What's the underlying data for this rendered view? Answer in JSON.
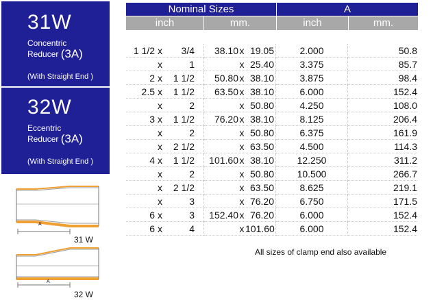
{
  "products": [
    {
      "code": "31W",
      "type_line1": "Concentric",
      "type_line2": "Reducer",
      "standard": "(3A)",
      "end_note": "(With Straight End )"
    },
    {
      "code": "32W",
      "type_line1": "Eccentric",
      "type_line2": "Reducer",
      "standard": "(3A)",
      "end_note": "(With Straight End )"
    }
  ],
  "diagrams": [
    {
      "label": "31 W",
      "dim": "A"
    },
    {
      "label": "32 W",
      "dim": "A"
    }
  ],
  "table": {
    "group_headers": [
      "Nominal  Sizes",
      "A"
    ],
    "sub_headers": [
      "inch",
      "mm.",
      "inch",
      "mm."
    ],
    "rows": [
      {
        "in1": "1 1/2",
        "in2": "3/4",
        "mm1": "38.10",
        "mm2": "19.05",
        "a_in": "2.000",
        "a_mm": "50.8"
      },
      {
        "in1": "",
        "in2": "1",
        "mm1": "",
        "mm2": "25.40",
        "a_in": "3.375",
        "a_mm": "85.7"
      },
      {
        "in1": "2",
        "in2": "1 1/2",
        "mm1": "50.80",
        "mm2": "38.10",
        "a_in": "3.875",
        "a_mm": "98.4"
      },
      {
        "in1": "2.5",
        "in2": "1 1/2",
        "mm1": "63.50",
        "mm2": "38.10",
        "a_in": "6.000",
        "a_mm": "152.4"
      },
      {
        "in1": "",
        "in2": "2",
        "mm1": "",
        "mm2": "50.80",
        "a_in": "4.250",
        "a_mm": "108.0"
      },
      {
        "in1": "3",
        "in2": "1 1/2",
        "mm1": "76.20",
        "mm2": "38.10",
        "a_in": "8.125",
        "a_mm": "206.4"
      },
      {
        "in1": "",
        "in2": "2",
        "mm1": "",
        "mm2": "50.80",
        "a_in": "6.375",
        "a_mm": "161.9"
      },
      {
        "in1": "",
        "in2": "2 1/2",
        "mm1": "",
        "mm2": "63.50",
        "a_in": "4.500",
        "a_mm": "114.3"
      },
      {
        "in1": "4",
        "in2": "1 1/2",
        "mm1": "101.60",
        "mm2": "38.10",
        "a_in": "12.250",
        "a_mm": "311.2"
      },
      {
        "in1": "",
        "in2": "2",
        "mm1": "",
        "mm2": "50.80",
        "a_in": "10.500",
        "a_mm": "266.7"
      },
      {
        "in1": "",
        "in2": "2 1/2",
        "mm1": "",
        "mm2": "63.50",
        "a_in": "8.625",
        "a_mm": "219.1"
      },
      {
        "in1": "",
        "in2": "3",
        "mm1": "",
        "mm2": "76.20",
        "a_in": "6.750",
        "a_mm": "171.5"
      },
      {
        "in1": "6",
        "in2": "3",
        "mm1": "152.40",
        "mm2": "76.20",
        "a_in": "6.000",
        "a_mm": "152.4"
      },
      {
        "in1": "6",
        "in2": "4",
        "mm1": "",
        "mm2": "101.60",
        "a_in": "6.000",
        "a_mm": "152.4"
      }
    ],
    "separator": "x"
  },
  "footnote": "All sizes of clamp end also available",
  "colors": {
    "panel": "#1f1f96",
    "subheader": "#a8a8a8",
    "pipe": "#f0a030"
  }
}
